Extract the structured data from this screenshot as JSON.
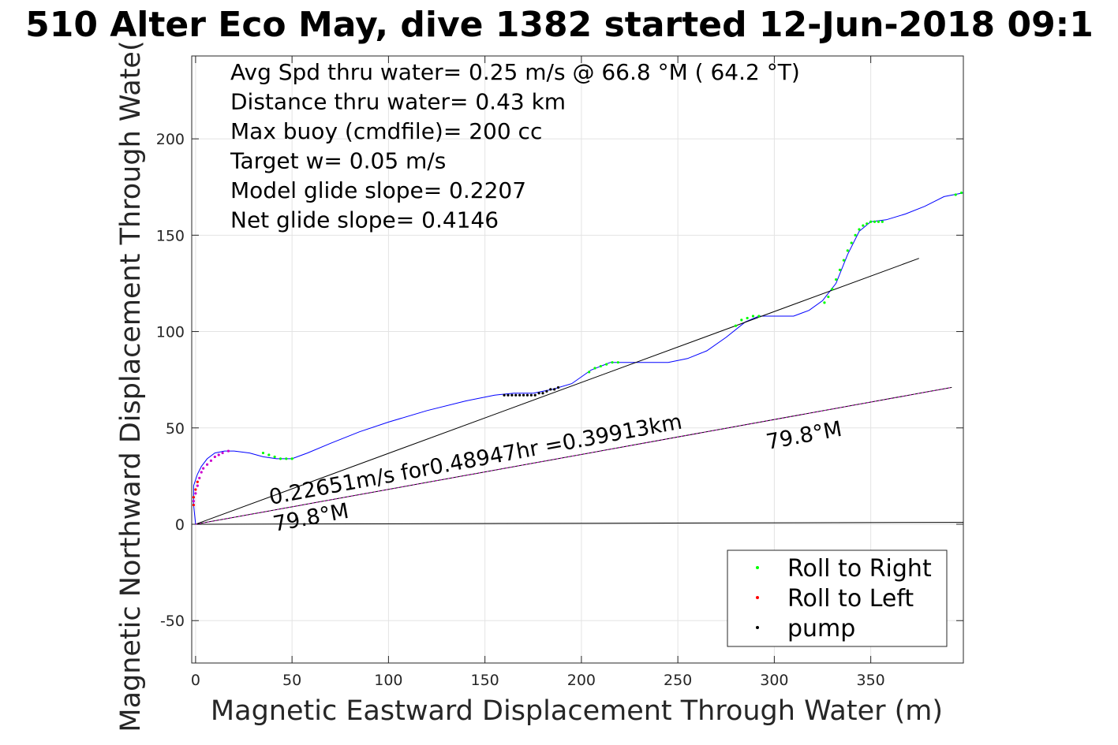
{
  "title": "510 Alter Eco May, dive 1382 started 12-Jun-2018 09:1",
  "chart_data": {
    "type": "line",
    "xlabel": "Magnetic Eastward Displacement Through Water (m)",
    "ylabel": "Magnetic Northward Displacement Through Wate(",
    "xlim": [
      -2,
      398
    ],
    "ylim": [
      -72,
      243
    ],
    "xticks": [
      0,
      50,
      100,
      150,
      200,
      250,
      300,
      350
    ],
    "yticks": [
      -50,
      0,
      50,
      100,
      150,
      200
    ],
    "grid": true,
    "legend_position": "bottom-right",
    "annotations_text": [
      "Avg Spd thru water=  0.25 m/s @  66.8 °M ( 64.2 °T)",
      "Distance thru water=  0.43 km",
      "Max buoy (cmdfile)= 200 cc",
      "Target w= 0.05 m/s",
      "Model glide slope= 0.2207",
      "Net glide slope= 0.4146"
    ],
    "line_labels": {
      "speed": "0.22651m/s for0.48947hr =0.39913km",
      "heading_start": "79.8°M",
      "heading_end": "79.8°M"
    },
    "legend": [
      {
        "name": "Roll to Right",
        "color": "#00ff00"
      },
      {
        "name": "Roll to Left",
        "color": "#ff0000"
      },
      {
        "name": "pump",
        "color": "#000000"
      }
    ],
    "series": [
      {
        "name": "track",
        "color": "#0000ff",
        "x": [
          0,
          -1,
          -1,
          1,
          3,
          6,
          10,
          15,
          20,
          28,
          35,
          42,
          50,
          58,
          70,
          85,
          100,
          120,
          140,
          155,
          165,
          175,
          185,
          195,
          205,
          215,
          225,
          235,
          245,
          255,
          265,
          275,
          285,
          292,
          300,
          310,
          318,
          325,
          332,
          338,
          344,
          350,
          358,
          368,
          378,
          388,
          398
        ],
        "y": [
          0,
          10,
          20,
          26,
          30,
          34,
          37,
          38,
          38,
          37,
          35,
          34,
          34,
          37,
          42,
          48,
          53,
          59,
          64,
          67,
          68,
          68,
          70,
          73,
          80,
          84,
          84,
          84,
          84,
          86,
          90,
          97,
          105,
          108,
          108,
          108,
          111,
          116,
          125,
          140,
          152,
          157,
          158,
          161,
          165,
          170,
          172
        ]
      },
      {
        "name": "reference",
        "color": "#000000",
        "x": [
          0,
          375
        ],
        "y": [
          0,
          138
        ]
      },
      {
        "name": "heading",
        "color": "#000000",
        "x": [
          0,
          392
        ],
        "y": [
          0,
          71
        ]
      },
      {
        "name": "baseline",
        "color": "#000000",
        "x": [
          0,
          398
        ],
        "y": [
          0,
          1
        ]
      }
    ],
    "markers": {
      "roll_right": {
        "color": "#00ff00",
        "x": [
          35,
          38,
          41,
          44,
          47,
          50,
          204,
          207,
          210,
          213,
          216,
          219,
          280,
          283,
          286,
          289,
          292,
          326,
          328,
          330,
          332,
          334,
          336,
          338,
          340,
          342,
          344,
          346,
          348,
          350,
          352,
          354,
          356,
          394,
          397
        ],
        "y": [
          37,
          36,
          35,
          34,
          34,
          34,
          79,
          81,
          82,
          83,
          84,
          84,
          103,
          106,
          107,
          108,
          108,
          115,
          118,
          122,
          127,
          132,
          137,
          142,
          146,
          150,
          153,
          155,
          156,
          157,
          157,
          157,
          157,
          171,
          172
        ]
      },
      "roll_left": {
        "color": "#ff0000",
        "x": [
          -1,
          -1,
          0,
          1
        ],
        "y": [
          10,
          14,
          18,
          22
        ]
      },
      "pump": {
        "color": "#000000",
        "x": [
          160,
          162,
          164,
          166,
          168,
          170,
          172,
          174,
          176,
          178,
          180,
          182,
          184,
          186,
          188
        ],
        "y": [
          67,
          67,
          67,
          67,
          67,
          67,
          67,
          67,
          67,
          68,
          68,
          69,
          70,
          70,
          71
        ]
      },
      "purple": {
        "color": "#cc00cc",
        "x": [
          -1,
          0,
          1,
          2,
          3,
          4,
          6,
          8,
          10,
          12,
          14,
          17
        ],
        "y": [
          12,
          16,
          20,
          24,
          27,
          29,
          31,
          33,
          35,
          36,
          37,
          38
        ]
      }
    }
  }
}
